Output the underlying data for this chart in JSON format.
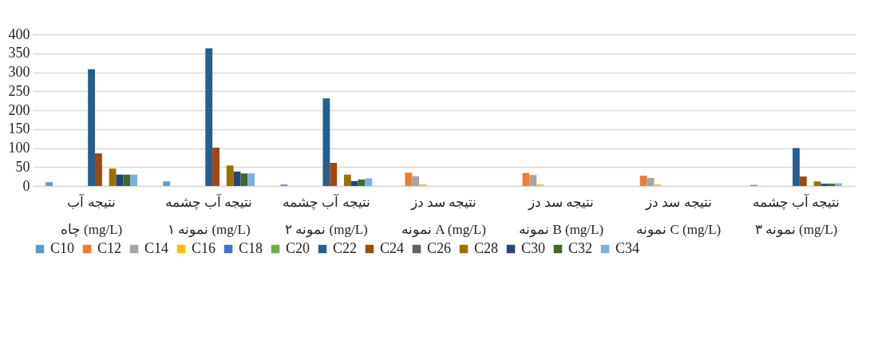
{
  "chart_data": {
    "type": "bar",
    "categories": [
      "نتیجه آب چاه (mg/L)",
      "نتیجه آب چشمه نمونه ۱ (mg/L)",
      "نتیجه آب چشمه نمونه ۲ (mg/L)",
      "نتیجه سد دز نمونه A (mg/L)",
      "نتیجه سد دز نمونه B (mg/L)",
      "نتیجه سد دز نمونه C (mg/L)",
      "نتیجه آب چشمه نمونه ۳ (mg/L)"
    ],
    "series": [
      {
        "name": "C10",
        "color": "#5b9bd5",
        "values": [
          10,
          12,
          4,
          0,
          0,
          0,
          3
        ]
      },
      {
        "name": "C12",
        "color": "#ed7d31",
        "values": [
          0,
          0,
          0,
          35,
          34,
          27,
          0
        ]
      },
      {
        "name": "C14",
        "color": "#a5a5a5",
        "values": [
          0,
          0,
          0,
          26,
          29,
          21,
          0
        ]
      },
      {
        "name": "C16",
        "color": "#ffc000",
        "values": [
          0,
          0,
          0,
          4,
          4,
          4,
          0
        ]
      },
      {
        "name": "C18",
        "color": "#4472c4",
        "values": [
          0,
          0,
          0,
          0,
          0,
          0,
          0
        ]
      },
      {
        "name": "C20",
        "color": "#70ad47",
        "values": [
          0,
          0,
          0,
          0,
          0,
          0,
          0
        ]
      },
      {
        "name": "C22",
        "color": "#255e91",
        "values": [
          308,
          363,
          231,
          0,
          0,
          0,
          100
        ]
      },
      {
        "name": "C24",
        "color": "#9e480e",
        "values": [
          86,
          101,
          61,
          0,
          0,
          0,
          25
        ]
      },
      {
        "name": "C26",
        "color": "#636363",
        "values": [
          0,
          0,
          0,
          0,
          0,
          0,
          0
        ]
      },
      {
        "name": "C28",
        "color": "#997300",
        "values": [
          46,
          54,
          30,
          0,
          0,
          0,
          12
        ]
      },
      {
        "name": "C30",
        "color": "#264478",
        "values": [
          30,
          38,
          13,
          0,
          0,
          0,
          6
        ]
      },
      {
        "name": "C32",
        "color": "#43682b",
        "values": [
          30,
          33,
          17,
          0,
          0,
          0,
          6
        ]
      },
      {
        "name": "C34",
        "color": "#7cafdd",
        "values": [
          30,
          33,
          20,
          0,
          0,
          0,
          7
        ]
      }
    ],
    "ylim": [
      0,
      400
    ],
    "yticks": [
      0,
      50,
      100,
      150,
      200,
      250,
      300,
      350,
      400
    ],
    "grid": "y",
    "legend": "bottom"
  }
}
